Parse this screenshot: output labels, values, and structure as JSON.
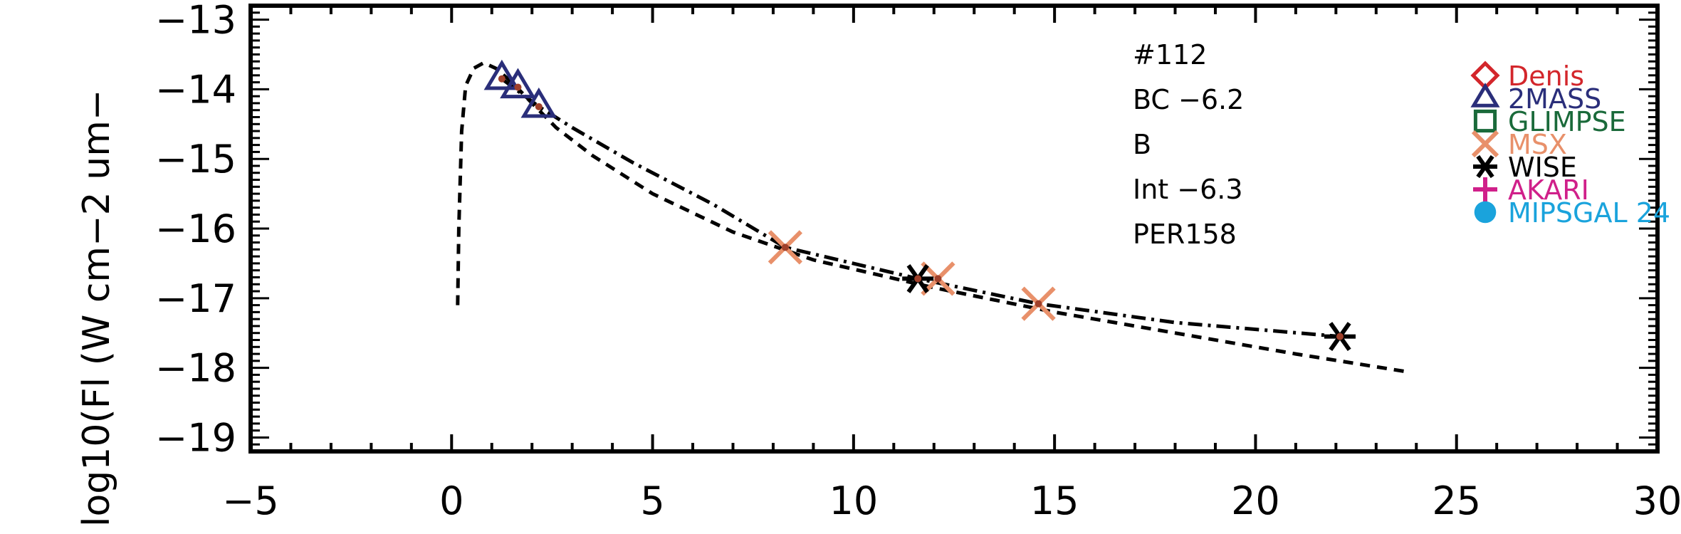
{
  "chart_data": {
    "type": "scatter",
    "title": "",
    "xlabel": "",
    "ylabel": "log10(Fl (W cm−2 um−",
    "xlim": [
      -5,
      30
    ],
    "ylim": [
      -19.2,
      -12.8
    ],
    "x_ticks": [
      -5,
      0,
      5,
      10,
      15,
      20,
      25,
      30
    ],
    "x_tick_labels": [
      "−5",
      "0",
      "5",
      "10",
      "15",
      "20",
      "25",
      "30"
    ],
    "y_ticks": [
      -13,
      -14,
      -15,
      -16,
      -17,
      -18,
      -19
    ],
    "y_tick_labels": [
      "−13",
      "−14",
      "−15",
      "−16",
      "−17",
      "−18",
      "−19"
    ],
    "grid": false,
    "legend_position": "top-right",
    "annotations": [
      "#112",
      "BC −6.2",
      "B",
      "Int −6.3",
      "PER158"
    ],
    "legend": [
      {
        "name": "Denis",
        "marker": "diamond",
        "color": "#d3262b"
      },
      {
        "name": "2MASS",
        "marker": "triangle",
        "color": "#2a2e7a"
      },
      {
        "name": "GLIMPSE",
        "marker": "square",
        "color": "#1a6a3a"
      },
      {
        "name": "MSX",
        "marker": "x",
        "color": "#e8906a"
      },
      {
        "name": "WISE",
        "marker": "asterisk",
        "color": "#000000"
      },
      {
        "name": "AKARI",
        "marker": "plus",
        "color": "#d0208a"
      },
      {
        "name": "MIPSGAL 24",
        "marker": "circle",
        "color": "#1aa3dc"
      }
    ],
    "series": [
      {
        "name": "2MASS",
        "marker": "triangle",
        "color": "#2a2e7a",
        "points": [
          [
            1.25,
            -13.85
          ],
          [
            1.65,
            -13.97
          ],
          [
            2.17,
            -14.25
          ]
        ]
      },
      {
        "name": "MSX",
        "marker": "x",
        "color": "#e8906a",
        "points": [
          [
            8.3,
            -16.27
          ],
          [
            12.1,
            -16.72
          ],
          [
            14.6,
            -17.08
          ]
        ]
      },
      {
        "name": "WISE",
        "marker": "asterisk",
        "color": "#000000",
        "points": [
          [
            11.6,
            -16.72
          ],
          [
            22.1,
            -17.55
          ]
        ]
      }
    ],
    "lines": [
      {
        "style": "dashed",
        "points": [
          [
            0.15,
            -17.1
          ],
          [
            0.18,
            -16.0
          ],
          [
            0.25,
            -14.6
          ],
          [
            0.35,
            -13.95
          ],
          [
            0.55,
            -13.7
          ],
          [
            0.8,
            -13.62
          ],
          [
            1.1,
            -13.7
          ],
          [
            1.5,
            -13.9
          ],
          [
            2.0,
            -14.2
          ],
          [
            2.6,
            -14.55
          ],
          [
            3.5,
            -14.95
          ],
          [
            5.0,
            -15.5
          ],
          [
            7.0,
            -16.05
          ],
          [
            9.0,
            -16.45
          ],
          [
            12.0,
            -16.85
          ],
          [
            15.0,
            -17.2
          ],
          [
            18.0,
            -17.5
          ],
          [
            21.0,
            -17.8
          ],
          [
            23.7,
            -18.05
          ]
        ]
      },
      {
        "style": "dashdot",
        "points": [
          [
            1.25,
            -13.85
          ],
          [
            2.17,
            -14.25
          ],
          [
            3.0,
            -14.55
          ],
          [
            4.5,
            -15.05
          ],
          [
            6.5,
            -15.65
          ],
          [
            8.3,
            -16.27
          ],
          [
            11.6,
            -16.72
          ],
          [
            14.6,
            -17.08
          ],
          [
            18.0,
            -17.35
          ],
          [
            22.1,
            -17.55
          ]
        ]
      }
    ],
    "centre_dots": [
      [
        1.25,
        -13.85
      ],
      [
        1.65,
        -13.97
      ],
      [
        2.17,
        -14.25
      ],
      [
        8.3,
        -16.27
      ],
      [
        11.6,
        -16.72
      ],
      [
        12.1,
        -16.72
      ],
      [
        14.6,
        -17.08
      ],
      [
        22.1,
        -17.55
      ]
    ]
  }
}
